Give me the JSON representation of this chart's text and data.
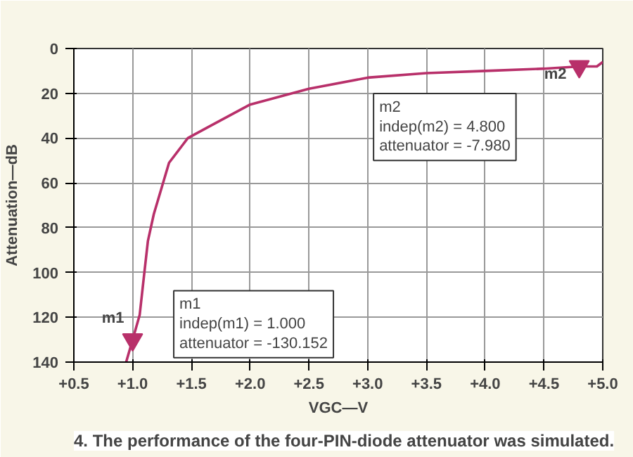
{
  "chart_data": {
    "type": "line",
    "xlabel": "VGC—V",
    "ylabel": "Attenuation—dB",
    "xlim": [
      0.5,
      5.0
    ],
    "ylim": [
      140,
      0
    ],
    "xticks": [
      {
        "value": 0.5,
        "label": "+0.5"
      },
      {
        "value": 1.0,
        "label": "+1.0"
      },
      {
        "value": 1.5,
        "label": "+1.5"
      },
      {
        "value": 2.0,
        "label": "+2.0"
      },
      {
        "value": 2.5,
        "label": "+2.5"
      },
      {
        "value": 3.0,
        "label": "+3.0"
      },
      {
        "value": 3.5,
        "label": "+3.5"
      },
      {
        "value": 4.0,
        "label": "+4.0"
      },
      {
        "value": 4.5,
        "label": "+4.5"
      },
      {
        "value": 5.0,
        "label": "+5.0"
      }
    ],
    "yticks": [
      0,
      20,
      40,
      60,
      80,
      100,
      120,
      140
    ],
    "grid": true,
    "line_style": "solid",
    "series": [
      {
        "color": "#b8306a",
        "marker": "none",
        "x": [
          0.945,
          1.0,
          1.06,
          1.1,
          1.13,
          1.18,
          1.31,
          1.47,
          1.68,
          2.0,
          2.5,
          3.0,
          3.5,
          4.0,
          4.5,
          4.8,
          4.95,
          5.0
        ],
        "values": [
          140,
          130,
          119,
          100,
          86,
          74,
          51,
          40,
          34,
          25,
          18,
          13,
          11,
          10,
          9,
          8,
          8,
          6
        ]
      },
      {
        "type": "scatter",
        "color": "#b8306a",
        "marker": "triangle",
        "x": [
          1.0,
          4.8
        ],
        "values": [
          130,
          8
        ]
      }
    ],
    "annotations": [
      {
        "text": "m1",
        "x": 1.0,
        "y": 130
      },
      {
        "text": "m2",
        "x": 4.8,
        "y": 8
      },
      "m1\nindep(m1) = 1.000\nattenuator = -130.152",
      "m2\nindep(m2) = 4.800\nattenuator = -7.980",
      "4. The performance of the four-PIN-diode attenuator was simulated."
    ]
  }
}
